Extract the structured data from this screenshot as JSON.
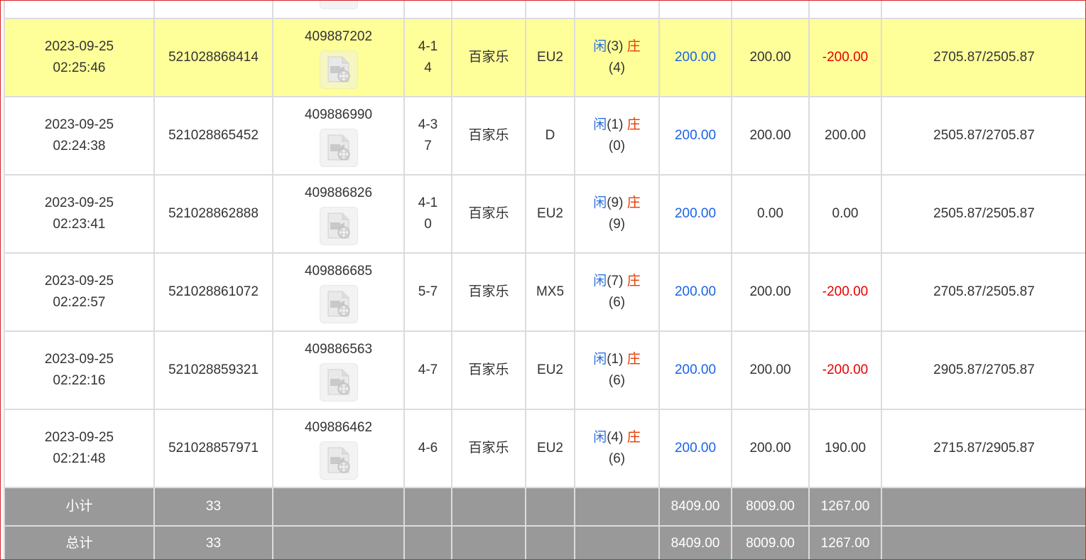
{
  "rows": [
    {
      "time_date": "",
      "time_clock": "",
      "bet_id": "",
      "round_id": "",
      "shoe": "",
      "game": "",
      "table": "",
      "player_label": "",
      "player_score": "",
      "banker_label": "",
      "banker_score": "",
      "bet": "",
      "valid": "",
      "winloss": "",
      "balance": "",
      "highlight": false,
      "winloss_negative": false
    },
    {
      "time_date": "2023-09-25",
      "time_clock": "02:25:46",
      "bet_id": "521028868414",
      "round_id": "409887202",
      "shoe": "4-14",
      "game": "百家乐",
      "table": "EU2",
      "player_label": "闲",
      "player_score": "(3)",
      "banker_label": "庄",
      "banker_score": "(4)",
      "bet": "200.00",
      "valid": "200.00",
      "winloss": "-200.00",
      "balance": "2705.87/2505.87",
      "highlight": true,
      "winloss_negative": true
    },
    {
      "time_date": "2023-09-25",
      "time_clock": "02:24:38",
      "bet_id": "521028865452",
      "round_id": "409886990",
      "shoe": "4-37",
      "game": "百家乐",
      "table": "D",
      "player_label": "闲",
      "player_score": "(1)",
      "banker_label": "庄",
      "banker_score": "(0)",
      "bet": "200.00",
      "valid": "200.00",
      "winloss": "200.00",
      "balance": "2505.87/2705.87",
      "highlight": false,
      "winloss_negative": false
    },
    {
      "time_date": "2023-09-25",
      "time_clock": "02:23:41",
      "bet_id": "521028862888",
      "round_id": "409886826",
      "shoe": "4-10",
      "game": "百家乐",
      "table": "EU2",
      "player_label": "闲",
      "player_score": "(9)",
      "banker_label": "庄",
      "banker_score": "(9)",
      "bet": "200.00",
      "valid": "0.00",
      "winloss": "0.00",
      "balance": "2505.87/2505.87",
      "highlight": false,
      "winloss_negative": false
    },
    {
      "time_date": "2023-09-25",
      "time_clock": "02:22:57",
      "bet_id": "521028861072",
      "round_id": "409886685",
      "shoe": "5-7",
      "game": "百家乐",
      "table": "MX5",
      "player_label": "闲",
      "player_score": "(7)",
      "banker_label": "庄",
      "banker_score": "(6)",
      "bet": "200.00",
      "valid": "200.00",
      "winloss": "-200.00",
      "balance": "2705.87/2505.87",
      "highlight": false,
      "winloss_negative": true
    },
    {
      "time_date": "2023-09-25",
      "time_clock": "02:22:16",
      "bet_id": "521028859321",
      "round_id": "409886563",
      "shoe": "4-7",
      "game": "百家乐",
      "table": "EU2",
      "player_label": "闲",
      "player_score": "(1)",
      "banker_label": "庄",
      "banker_score": "(6)",
      "bet": "200.00",
      "valid": "200.00",
      "winloss": "-200.00",
      "balance": "2905.87/2705.87",
      "highlight": false,
      "winloss_negative": true
    },
    {
      "time_date": "2023-09-25",
      "time_clock": "02:21:48",
      "bet_id": "521028857971",
      "round_id": "409886462",
      "shoe": "4-6",
      "game": "百家乐",
      "table": "EU2",
      "player_label": "闲",
      "player_score": "(4)",
      "banker_label": "庄",
      "banker_score": "(6)",
      "bet": "200.00",
      "valid": "200.00",
      "winloss": "190.00",
      "balance": "2715.87/2905.87",
      "highlight": false,
      "winloss_negative": false
    }
  ],
  "footer": {
    "subtotal": {
      "label": "小计",
      "count": "33",
      "bet": "8409.00",
      "valid": "8009.00",
      "winloss": "1267.00"
    },
    "total": {
      "label": "总计",
      "count": "33",
      "bet": "8409.00",
      "valid": "8009.00",
      "winloss": "1267.00"
    }
  },
  "colors": {
    "highlight": "#ffff99",
    "footer": "#999999",
    "bet": "#1a63e8",
    "negative": "#e60000",
    "player": "#2d6fe0",
    "banker": "#e63a00"
  }
}
